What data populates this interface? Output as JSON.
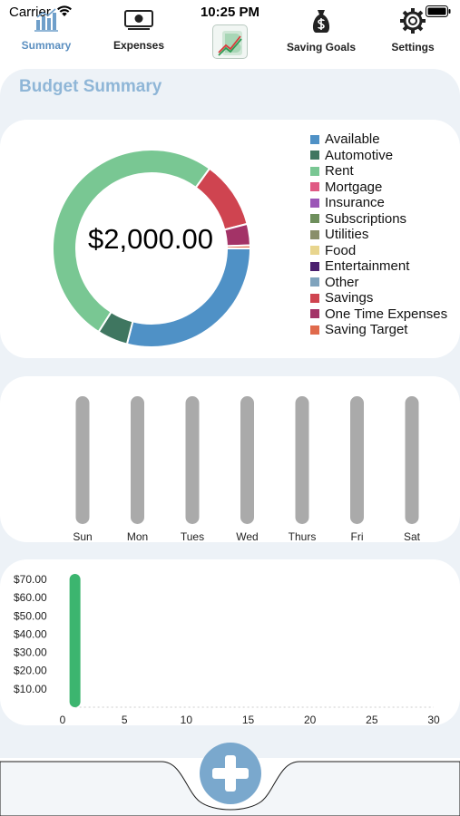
{
  "status_bar": {
    "carrier": "Carrier",
    "time": "10:25 PM"
  },
  "header": {
    "title": "Budget Summary"
  },
  "donut_chart": {
    "total": "$2,000.00",
    "legend": [
      {
        "label": "Available",
        "color": "#4f91c6"
      },
      {
        "label": "Automotive",
        "color": "#3f7660"
      },
      {
        "label": "Rent",
        "color": "#79c793"
      },
      {
        "label": "Mortgage",
        "color": "#e05a84"
      },
      {
        "label": "Insurance",
        "color": "#9b56b7"
      },
      {
        "label": "Subscriptions",
        "color": "#6e8f5c"
      },
      {
        "label": "Utilities",
        "color": "#8a8f6a"
      },
      {
        "label": "Food",
        "color": "#e8d58e"
      },
      {
        "label": "Entertainment",
        "color": "#4a1f6e"
      },
      {
        "label": "Other",
        "color": "#7fa3bd"
      },
      {
        "label": "Savings",
        "color": "#cf4450"
      },
      {
        "label": "One Time Expenses",
        "color": "#a33367"
      },
      {
        "label": "Saving Target",
        "color": "#e06a4c"
      }
    ]
  },
  "chart_data": [
    {
      "type": "pie",
      "title": "$2,000.00",
      "categories": [
        "Available",
        "Automotive",
        "Rent",
        "Savings",
        "One Time Expenses",
        "Saving Target"
      ],
      "values": [
        29,
        5,
        51,
        11,
        3.5,
        0.5
      ],
      "colors": [
        "#4f91c6",
        "#3f7660",
        "#79c793",
        "#cf4450",
        "#a33367",
        "#e06a4c"
      ]
    },
    {
      "type": "bar",
      "categories": [
        "Sun",
        "Mon",
        "Tues",
        "Wed",
        "Thurs",
        "Fri",
        "Sat"
      ],
      "values": [
        0,
        0,
        0,
        0,
        0,
        0,
        0
      ],
      "bar_color": "#aaaaaa"
    },
    {
      "type": "bar",
      "x": [
        1
      ],
      "values": [
        73
      ],
      "xlim": [
        0,
        30
      ],
      "xticks": [
        "0",
        "5",
        "10",
        "15",
        "20",
        "25",
        "30"
      ],
      "yticks": [
        "$10.00",
        "$20.00",
        "$30.00",
        "$40.00",
        "$50.00",
        "$60.00",
        "$70.00"
      ],
      "ylim": [
        0,
        75
      ],
      "bar_color": "#3cb56f"
    }
  ],
  "tab_bar": {
    "summary": "Summary",
    "expenses": "Expenses",
    "saving_goals": "Saving Goals",
    "settings": "Settings"
  }
}
